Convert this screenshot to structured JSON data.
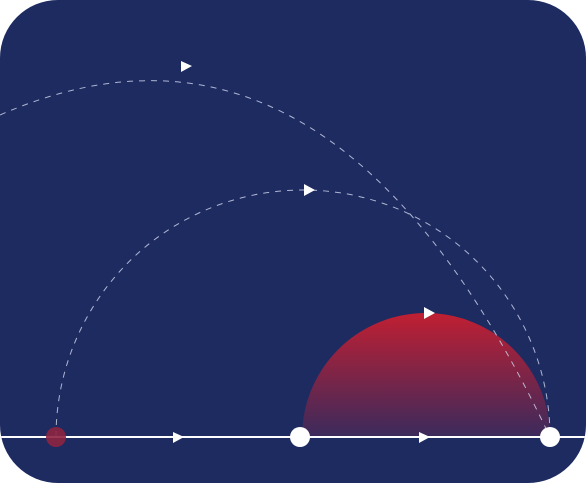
{
  "diagram": {
    "kind": "arc-path-illustration",
    "colors": {
      "background": "#1d2b61",
      "line": "#ffffff",
      "dash": "#c9cfe6",
      "dome_top": "#c01f32",
      "dome_bottom": "#3b2a5c",
      "dot_accent": "#8e2340"
    },
    "baseline_arrows": 2,
    "arcs": [
      {
        "name": "outer-arc",
        "style": "dashed",
        "direction": "left-to-right"
      },
      {
        "name": "middle-arc",
        "style": "dashed",
        "direction": "left-to-right"
      },
      {
        "name": "dome",
        "style": "filled-gradient",
        "direction": "left-to-right"
      }
    ],
    "nodes": [
      {
        "name": "start-node",
        "style": "faded-red"
      },
      {
        "name": "middle-node",
        "style": "white"
      },
      {
        "name": "end-node",
        "style": "white"
      }
    ]
  }
}
